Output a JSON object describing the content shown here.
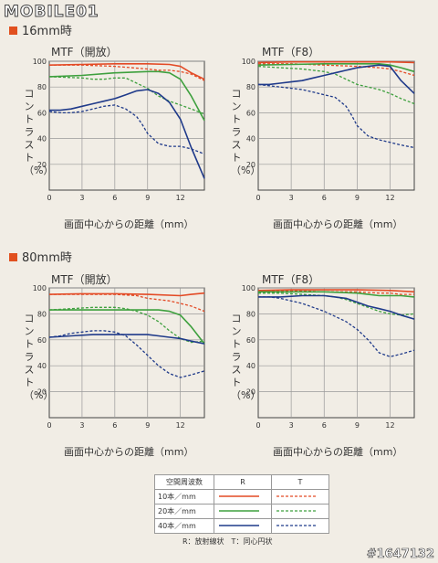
{
  "header": {
    "logo_text": "MOBILE01",
    "watermark": "#1647132"
  },
  "sections": [
    {
      "title": "16mm時"
    },
    {
      "title": "80mm時"
    }
  ],
  "legend": {
    "header_spatial": "空間周波数",
    "header_r": "R",
    "header_t": "T",
    "rows": [
      "10本／mm",
      "20本／mm",
      "40本／mm"
    ],
    "note": "R：放射線状　T：同心円状"
  },
  "colors": {
    "red": "#e34a25",
    "green": "#3ea03e",
    "blue": "#1f3a8a",
    "accent": "#e1501f",
    "grid": "#999999"
  },
  "chart_data": [
    {
      "type": "line",
      "title": "MTF（開放）",
      "xlabel": "画面中心からの距離（mm）",
      "ylabel": "コントラスト（%）",
      "xlim": [
        0,
        14.2
      ],
      "ylim": [
        0,
        100
      ],
      "x_ticks": [
        0,
        3,
        6,
        9,
        12
      ],
      "y_ticks": [
        20,
        40,
        60,
        80,
        100
      ],
      "series": [
        {
          "name": "10本／mm R",
          "color": "red",
          "dash": false,
          "x": [
            0,
            3,
            6,
            9,
            11,
            12,
            13,
            14.2
          ],
          "y": [
            97,
            97.5,
            98,
            98,
            97.5,
            96,
            91,
            86
          ]
        },
        {
          "name": "10本／mm T",
          "color": "red",
          "dash": true,
          "x": [
            0,
            3,
            6,
            9,
            10,
            11,
            12,
            13,
            14.2
          ],
          "y": [
            97,
            97,
            96,
            94,
            93,
            93,
            92,
            90,
            85
          ]
        },
        {
          "name": "20本／mm R",
          "color": "green",
          "dash": false,
          "x": [
            0,
            3,
            6,
            9,
            10,
            11,
            12,
            13,
            14.2
          ],
          "y": [
            88,
            89,
            91,
            92,
            92,
            91,
            86,
            73,
            54
          ]
        },
        {
          "name": "20本／mm T",
          "color": "green",
          "dash": true,
          "x": [
            0,
            3,
            4,
            5,
            6,
            7,
            8,
            9,
            10,
            11,
            12,
            13,
            14.2
          ],
          "y": [
            88,
            87,
            86,
            86,
            87,
            87,
            83,
            79,
            73,
            69,
            66,
            63,
            59
          ]
        },
        {
          "name": "40本／mm R",
          "color": "blue",
          "dash": false,
          "x": [
            0,
            1,
            2,
            3,
            4,
            5,
            6,
            7,
            8,
            9,
            10,
            11,
            12,
            13,
            14.2
          ],
          "y": [
            62,
            62,
            63,
            65,
            67,
            69,
            71,
            74,
            77,
            78,
            75,
            68,
            55,
            33,
            9
          ]
        },
        {
          "name": "40本／mm T",
          "color": "blue",
          "dash": true,
          "x": [
            0,
            1,
            2,
            3,
            4,
            5,
            6,
            7,
            8,
            8.5,
            9,
            10,
            11,
            12,
            13,
            14.2
          ],
          "y": [
            61,
            60,
            60,
            61,
            63,
            65,
            66,
            63,
            57,
            51,
            44,
            36,
            34,
            34,
            32,
            28
          ]
        }
      ]
    },
    {
      "type": "line",
      "title": "MTF（F8）",
      "xlabel": "画面中心からの距離（mm）",
      "ylabel": "コントラスト（%）",
      "xlim": [
        0,
        14.2
      ],
      "ylim": [
        0,
        100
      ],
      "x_ticks": [
        0,
        3,
        6,
        9,
        12
      ],
      "y_ticks": [
        20,
        40,
        60,
        80,
        100
      ],
      "series": [
        {
          "name": "10本／mm R",
          "color": "red",
          "dash": false,
          "x": [
            0,
            3,
            6,
            9,
            12,
            14.2
          ],
          "y": [
            99,
            99.5,
            99.5,
            99.5,
            99.5,
            99
          ]
        },
        {
          "name": "10本／mm T",
          "color": "red",
          "dash": true,
          "x": [
            0,
            3,
            6,
            9,
            11,
            12,
            13,
            14.2
          ],
          "y": [
            98,
            98,
            97,
            96,
            95,
            94,
            92,
            89
          ]
        },
        {
          "name": "20本／mm R",
          "color": "green",
          "dash": false,
          "x": [
            0,
            3,
            6,
            9,
            11,
            12,
            13,
            14.2
          ],
          "y": [
            97,
            97.5,
            98,
            98,
            98,
            97,
            95,
            92
          ]
        },
        {
          "name": "20本／mm T",
          "color": "green",
          "dash": true,
          "x": [
            0,
            2,
            4,
            6,
            7,
            8,
            9,
            10,
            11,
            12,
            13,
            14.2
          ],
          "y": [
            96,
            95,
            94,
            92,
            90,
            86,
            82,
            80,
            78,
            75,
            71,
            67
          ]
        },
        {
          "name": "40本／mm R",
          "color": "blue",
          "dash": false,
          "x": [
            0,
            1,
            2,
            3,
            4,
            5,
            6,
            7,
            8,
            9,
            10,
            11,
            12,
            13,
            14.2
          ],
          "y": [
            82,
            82,
            83,
            84,
            85,
            87,
            89,
            91,
            93,
            95,
            96,
            97,
            96,
            85,
            75
          ]
        },
        {
          "name": "40本／mm T",
          "color": "blue",
          "dash": true,
          "x": [
            0,
            1,
            2,
            3,
            4,
            5,
            6,
            7,
            8,
            8.5,
            9,
            10,
            11,
            12,
            13,
            14.2
          ],
          "y": [
            82,
            81,
            80,
            79,
            78,
            76,
            74,
            72,
            65,
            58,
            50,
            42,
            39,
            37,
            35,
            33
          ]
        }
      ]
    },
    {
      "type": "line",
      "title": "MTF（開放）",
      "xlabel": "画面中心からの距離（mm）",
      "ylabel": "コントラスト（%）",
      "xlim": [
        0,
        14.2
      ],
      "ylim": [
        0,
        100
      ],
      "x_ticks": [
        0,
        3,
        6,
        9,
        12
      ],
      "y_ticks": [
        20,
        40,
        60,
        80,
        100
      ],
      "series": [
        {
          "name": "10本／mm R",
          "color": "red",
          "dash": false,
          "x": [
            0,
            3,
            6,
            9,
            12,
            13,
            14.2
          ],
          "y": [
            95,
            95.5,
            95.5,
            95,
            94,
            95,
            96
          ]
        },
        {
          "name": "10本／mm T",
          "color": "red",
          "dash": true,
          "x": [
            0,
            3,
            6,
            8,
            9,
            10,
            11,
            12,
            13,
            14.2
          ],
          "y": [
            95,
            95,
            95,
            94,
            92,
            91,
            90,
            88,
            86,
            82
          ]
        },
        {
          "name": "20本／mm R",
          "color": "green",
          "dash": false,
          "x": [
            0,
            3,
            6,
            9,
            10,
            11,
            12,
            13,
            14.2
          ],
          "y": [
            83,
            83,
            83,
            83,
            83,
            82,
            79,
            70,
            57
          ]
        },
        {
          "name": "20本／mm T",
          "color": "green",
          "dash": true,
          "x": [
            0,
            2,
            4,
            5,
            6,
            7,
            8,
            9,
            10,
            11,
            12,
            13,
            14.2
          ],
          "y": [
            83,
            84,
            85,
            85,
            85,
            84,
            82,
            79,
            74,
            67,
            61,
            58,
            59
          ]
        },
        {
          "name": "40本／mm R",
          "color": "blue",
          "dash": false,
          "x": [
            0,
            2,
            4,
            6,
            8,
            9,
            10,
            11,
            12,
            13,
            14.2
          ],
          "y": [
            62,
            63,
            64,
            64,
            64,
            64,
            63,
            62,
            61,
            59,
            57
          ]
        },
        {
          "name": "40本／mm T",
          "color": "blue",
          "dash": true,
          "x": [
            0,
            1,
            2,
            3,
            4,
            5,
            6,
            7,
            8,
            9,
            10,
            11,
            12,
            13,
            14.2
          ],
          "y": [
            62,
            63,
            65,
            66,
            67,
            67,
            66,
            63,
            56,
            48,
            40,
            34,
            31,
            33,
            36
          ]
        }
      ]
    },
    {
      "type": "line",
      "title": "MTF（F8）",
      "xlabel": "画面中心からの距離（mm）",
      "ylabel": "コントラスト（%）",
      "xlim": [
        0,
        14.2
      ],
      "ylim": [
        0,
        100
      ],
      "x_ticks": [
        0,
        3,
        6,
        9,
        12
      ],
      "y_ticks": [
        20,
        40,
        60,
        80,
        100
      ],
      "series": [
        {
          "name": "10本／mm R",
          "color": "red",
          "dash": false,
          "x": [
            0,
            3,
            6,
            9,
            12,
            14.2
          ],
          "y": [
            98,
            98.5,
            98.5,
            98.5,
            98,
            97
          ]
        },
        {
          "name": "10本／mm T",
          "color": "red",
          "dash": true,
          "x": [
            0,
            3,
            6,
            9,
            11,
            12,
            13,
            14.2
          ],
          "y": [
            98,
            98,
            97,
            97,
            96,
            96,
            95,
            95
          ]
        },
        {
          "name": "20本／mm R",
          "color": "green",
          "dash": false,
          "x": [
            0,
            3,
            6,
            9,
            10,
            11,
            12,
            13,
            14.2
          ],
          "y": [
            97,
            97,
            97,
            96,
            95,
            94,
            94,
            94,
            93
          ]
        },
        {
          "name": "20本／mm T",
          "color": "green",
          "dash": true,
          "x": [
            0,
            2,
            4,
            6,
            7,
            8,
            9,
            10,
            11,
            12,
            13,
            14.2
          ],
          "y": [
            96,
            96,
            95,
            94,
            93,
            91,
            88,
            85,
            82,
            80,
            79,
            80
          ]
        },
        {
          "name": "40本／mm R",
          "color": "blue",
          "dash": false,
          "x": [
            0,
            2,
            4,
            6,
            7,
            8,
            9,
            10,
            11,
            12,
            13,
            14.2
          ],
          "y": [
            93,
            93,
            94,
            94,
            93,
            92,
            89,
            86,
            84,
            82,
            79,
            76
          ]
        },
        {
          "name": "40本／mm T",
          "color": "blue",
          "dash": true,
          "x": [
            0,
            1,
            2,
            3,
            4,
            5,
            6,
            7,
            8,
            9,
            10,
            11,
            12,
            13,
            14.2
          ],
          "y": [
            93,
            93,
            92,
            90,
            88,
            85,
            82,
            78,
            74,
            68,
            60,
            50,
            47,
            49,
            52
          ]
        }
      ]
    }
  ]
}
